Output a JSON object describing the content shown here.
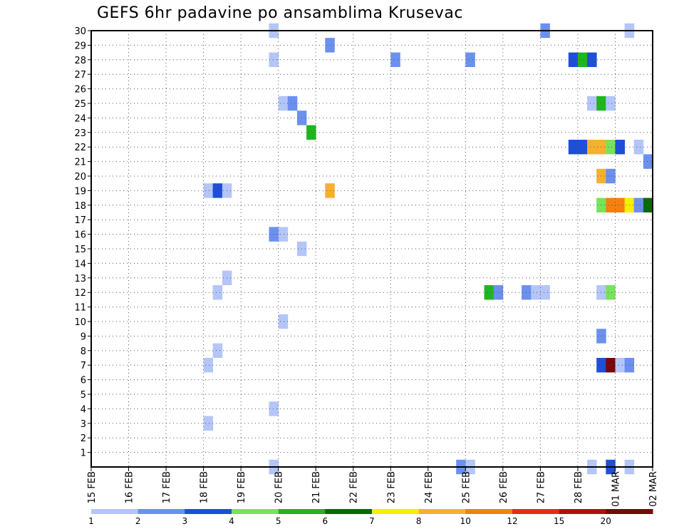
{
  "title": "GEFS 6hr padavine po ansamblima Krusevac",
  "chart_data": {
    "type": "heatmap",
    "title": "GEFS 6hr padavine po ansamblima Krusevac",
    "x_tick_labels": [
      "15 FEB",
      "16 FEB",
      "17 FEB",
      "18 FEB",
      "19 FEB",
      "20 FEB",
      "21 FEB",
      "22 FEB",
      "23 FEB",
      "24 FEB",
      "25 FEB",
      "26 FEB",
      "27 FEB",
      "28 FEB",
      "01 MAR",
      "02 MAR"
    ],
    "y_tick_labels": [
      "1",
      "2",
      "3",
      "4",
      "5",
      "6",
      "7",
      "8",
      "9",
      "10",
      "11",
      "12",
      "13",
      "14",
      "15",
      "16",
      "17",
      "18",
      "19",
      "20",
      "21",
      "22",
      "23",
      "24",
      "25",
      "26",
      "27",
      "28",
      "29",
      "30"
    ],
    "xlim_days": [
      15.0,
      30.0
    ],
    "ylim": [
      0,
      30
    ],
    "grid": true,
    "colorbar": {
      "position": "bottom",
      "labels": [
        "1",
        "2",
        "3",
        "4",
        "5",
        "6",
        "7",
        "8",
        "10",
        "12",
        "15",
        "20"
      ],
      "colors": [
        "#b4c5f8",
        "#6b90ee",
        "#1f4fd8",
        "#77e35a",
        "#1fb51f",
        "#0a6a0a",
        "#f4f000",
        "#f6b030",
        "#f58010",
        "#e03010",
        "#b01010",
        "#780808"
      ]
    },
    "cells": [
      {
        "day": 19.75,
        "member": 30,
        "cls": 0
      },
      {
        "day": 21.25,
        "member": 29,
        "cls": 1
      },
      {
        "day": 19.75,
        "member": 28,
        "cls": 0
      },
      {
        "day": 23.0,
        "member": 28,
        "cls": 1
      },
      {
        "day": 25.0,
        "member": 28,
        "cls": 1
      },
      {
        "day": 27.0,
        "member": 30,
        "cls": 1
      },
      {
        "day": 27.75,
        "member": 28,
        "cls": 2
      },
      {
        "day": 28.0,
        "member": 28,
        "cls": 4
      },
      {
        "day": 28.25,
        "member": 28,
        "cls": 2
      },
      {
        "day": 29.25,
        "member": 30,
        "cls": 0
      },
      {
        "day": 20.0,
        "member": 25,
        "cls": 0
      },
      {
        "day": 20.25,
        "member": 25,
        "cls": 1
      },
      {
        "day": 20.5,
        "member": 24,
        "cls": 1
      },
      {
        "day": 20.75,
        "member": 23,
        "cls": 4
      },
      {
        "day": 28.25,
        "member": 25,
        "cls": 0
      },
      {
        "day": 28.5,
        "member": 25,
        "cls": 4
      },
      {
        "day": 28.75,
        "member": 25,
        "cls": 0
      },
      {
        "day": 27.75,
        "member": 22,
        "cls": 2
      },
      {
        "day": 28.0,
        "member": 22,
        "cls": 2
      },
      {
        "day": 28.25,
        "member": 22,
        "cls": 7
      },
      {
        "day": 28.5,
        "member": 22,
        "cls": 7
      },
      {
        "day": 28.75,
        "member": 22,
        "cls": 3
      },
      {
        "day": 29.0,
        "member": 22,
        "cls": 2
      },
      {
        "day": 29.5,
        "member": 22,
        "cls": 0
      },
      {
        "day": 29.75,
        "member": 21,
        "cls": 1
      },
      {
        "day": 28.5,
        "member": 20,
        "cls": 7
      },
      {
        "day": 28.75,
        "member": 20,
        "cls": 1
      },
      {
        "day": 18.0,
        "member": 19,
        "cls": 0
      },
      {
        "day": 18.25,
        "member": 19,
        "cls": 2
      },
      {
        "day": 18.5,
        "member": 19,
        "cls": 0
      },
      {
        "day": 21.25,
        "member": 19,
        "cls": 7
      },
      {
        "day": 28.5,
        "member": 18,
        "cls": 3
      },
      {
        "day": 28.75,
        "member": 18,
        "cls": 8
      },
      {
        "day": 29.0,
        "member": 18,
        "cls": 8
      },
      {
        "day": 29.25,
        "member": 18,
        "cls": 6
      },
      {
        "day": 29.5,
        "member": 18,
        "cls": 1
      },
      {
        "day": 29.75,
        "member": 18,
        "cls": 5
      },
      {
        "day": 19.75,
        "member": 16,
        "cls": 1
      },
      {
        "day": 20.0,
        "member": 16,
        "cls": 0
      },
      {
        "day": 20.5,
        "member": 15,
        "cls": 0
      },
      {
        "day": 18.5,
        "member": 13,
        "cls": 0
      },
      {
        "day": 18.25,
        "member": 12,
        "cls": 0
      },
      {
        "day": 25.5,
        "member": 12,
        "cls": 4
      },
      {
        "day": 25.75,
        "member": 12,
        "cls": 1
      },
      {
        "day": 26.5,
        "member": 12,
        "cls": 1
      },
      {
        "day": 26.75,
        "member": 12,
        "cls": 0
      },
      {
        "day": 27.0,
        "member": 12,
        "cls": 0
      },
      {
        "day": 28.5,
        "member": 12,
        "cls": 0
      },
      {
        "day": 28.75,
        "member": 12,
        "cls": 3
      },
      {
        "day": 20.0,
        "member": 10,
        "cls": 0
      },
      {
        "day": 28.5,
        "member": 9,
        "cls": 1
      },
      {
        "day": 18.25,
        "member": 8,
        "cls": 0
      },
      {
        "day": 18.0,
        "member": 7,
        "cls": 0
      },
      {
        "day": 28.5,
        "member": 7,
        "cls": 2
      },
      {
        "day": 28.75,
        "member": 7,
        "cls": 11
      },
      {
        "day": 29.0,
        "member": 7,
        "cls": 0
      },
      {
        "day": 29.25,
        "member": 7,
        "cls": 1
      },
      {
        "day": 19.75,
        "member": 4,
        "cls": 0
      },
      {
        "day": 18.0,
        "member": 3,
        "cls": 0
      },
      {
        "day": 19.75,
        "member": 0,
        "cls": 0
      },
      {
        "day": 24.75,
        "member": 0,
        "cls": 1
      },
      {
        "day": 25.0,
        "member": 0,
        "cls": 0
      },
      {
        "day": 28.25,
        "member": 0,
        "cls": 0
      },
      {
        "day": 28.75,
        "member": 0,
        "cls": 2
      },
      {
        "day": 29.25,
        "member": 0,
        "cls": 0
      }
    ]
  }
}
